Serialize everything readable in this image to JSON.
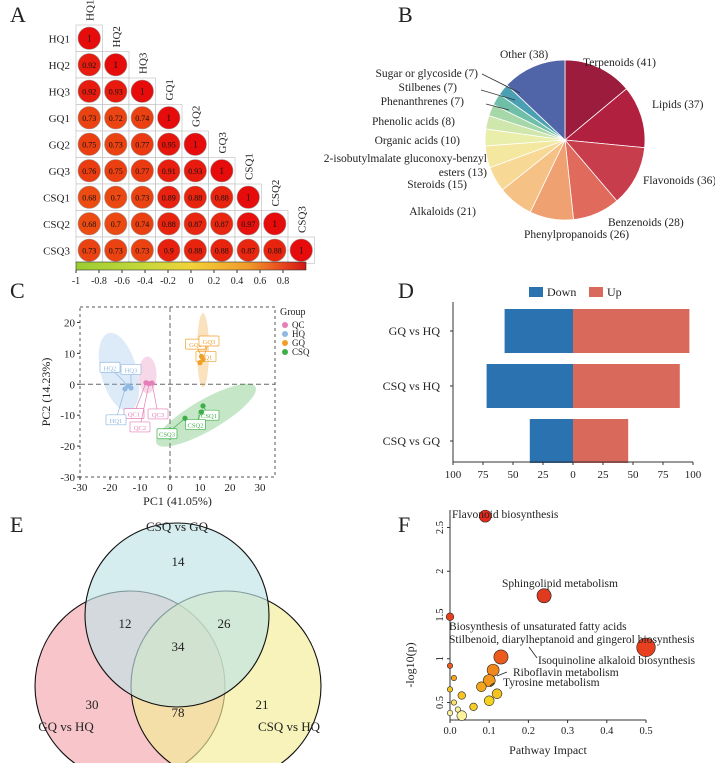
{
  "panel_labels": [
    "A",
    "B",
    "C",
    "D",
    "E",
    "F"
  ],
  "chart_data": [
    {
      "panel": "A",
      "type": "heatmap",
      "samples": [
        "HQ1",
        "HQ2",
        "HQ3",
        "GQ1",
        "GQ2",
        "GQ3",
        "CSQ1",
        "CSQ2",
        "CSQ3"
      ],
      "matrix": [
        [
          "1"
        ],
        [
          "0.92",
          "1"
        ],
        [
          "0.92",
          "0.93",
          "1"
        ],
        [
          "0.73",
          "0.72",
          "0.74",
          "1"
        ],
        [
          "0.75",
          "0.73",
          "0.77",
          "0.95",
          "1"
        ],
        [
          "0.76",
          "0.75",
          "0.77",
          "0.91",
          "0.93",
          "1"
        ],
        [
          "0.68",
          "0.7",
          "0.73",
          "0.89",
          "0.88",
          "0.88",
          "1"
        ],
        [
          "0.68",
          "0.7",
          "0.74",
          "0.88",
          "0.87",
          "0.87",
          "0.97",
          "1"
        ],
        [
          "0.73",
          "0.73",
          "0.73",
          "0.9",
          "0.88",
          "0.88",
          "0.87",
          "0.88",
          "1"
        ]
      ],
      "colorbar": {
        "ticks": [
          "-1",
          "-0.8",
          "-0.6",
          "-0.4",
          "-0.2",
          "0",
          "0.2",
          "0.4",
          "0.6",
          "0.8"
        ],
        "range": [
          -1,
          1
        ]
      }
    },
    {
      "panel": "B",
      "type": "pie",
      "slices": [
        {
          "label": "Terpenoids",
          "value": 41,
          "color": "#9b1c3c"
        },
        {
          "label": "Lipids",
          "value": 37,
          "color": "#b2203f"
        },
        {
          "label": "Flavonoids",
          "value": 36,
          "color": "#c83d4c"
        },
        {
          "label": "Benzenoids",
          "value": 28,
          "color": "#e06a5b"
        },
        {
          "label": "Phenylpropanoids",
          "value": 26,
          "color": "#f0a171"
        },
        {
          "label": "Alkaloids",
          "value": 21,
          "color": "#f5c184"
        },
        {
          "label": "Steroids",
          "value": 15,
          "color": "#f7d995"
        },
        {
          "label": "2-isobutylmalate gluconoxy-benzyl\nesters",
          "value": 13,
          "color": "#f4e8a1"
        },
        {
          "label": "Organic acids",
          "value": 10,
          "color": "#e9efaa"
        },
        {
          "label": "Phenolic acids",
          "value": 8,
          "color": "#cfe6ad"
        },
        {
          "label": "Phenanthrenes",
          "value": 7,
          "color": "#a6d7a8"
        },
        {
          "label": "Stilbenes",
          "value": 7,
          "color": "#6fbfa8"
        },
        {
          "label": "Sugar or glycoside",
          "value": 7,
          "color": "#4a9fb2"
        },
        {
          "label": "Other",
          "value": 38,
          "color": "#5064a8"
        }
      ]
    },
    {
      "panel": "C",
      "type": "scatter",
      "xlabel": "PC1  (41.05%)",
      "ylabel": "PC2  (14.23%)",
      "xlim": [
        -30,
        35
      ],
      "ylim": [
        -30,
        25
      ],
      "xticks": [
        -30,
        -20,
        -10,
        0,
        10,
        20,
        30
      ],
      "yticks": [
        -30,
        -20,
        -10,
        0,
        10,
        20
      ],
      "legend_title": "Group",
      "series": [
        {
          "name": "QC",
          "color": "#e57fb7",
          "points": [
            {
              "label": "QC1",
              "x": -8,
              "y": 0.5
            },
            {
              "label": "QC2",
              "x": -7,
              "y": 0.2
            },
            {
              "label": "QC3",
              "x": -6,
              "y": 0.4
            }
          ]
        },
        {
          "name": "HQ",
          "color": "#8fb8e3",
          "points": [
            {
              "label": "HQ1",
              "x": -15,
              "y": -1.5
            },
            {
              "label": "HQ2",
              "x": -14,
              "y": -0.5
            },
            {
              "label": "HQ3",
              "x": -13,
              "y": -1.2
            }
          ]
        },
        {
          "name": "GQ",
          "color": "#f0a029",
          "points": [
            {
              "label": "GQ1",
              "x": 10,
              "y": 7
            },
            {
              "label": "GQ2",
              "x": 10.5,
              "y": 9
            },
            {
              "label": "GQ3",
              "x": 11,
              "y": 8
            }
          ]
        },
        {
          "name": "CSQ",
          "color": "#3fae49",
          "points": [
            {
              "label": "CSQ1",
              "x": 11,
              "y": -7
            },
            {
              "label": "CSQ2",
              "x": 10.5,
              "y": -9
            },
            {
              "label": "CSQ3",
              "x": 5,
              "y": -11
            }
          ]
        }
      ]
    },
    {
      "panel": "D",
      "type": "bar",
      "categories": [
        "GQ vs HQ",
        "CSQ vs HQ",
        "CSQ vs GQ"
      ],
      "series": [
        {
          "name": "Down",
          "color": "#2b72b0",
          "values": [
            57,
            72,
            36
          ]
        },
        {
          "name": "Up",
          "color": "#d9695a",
          "values": [
            97,
            89,
            46
          ]
        }
      ],
      "xticks": [
        "100",
        "75",
        "50",
        "25",
        "0",
        "25",
        "50",
        "75",
        "100"
      ],
      "xlim": [
        -100,
        100
      ]
    },
    {
      "panel": "E",
      "type": "venn",
      "sets": [
        {
          "name": "CSQ vs GQ",
          "color": "#bfe4e6"
        },
        {
          "name": "GQ vs HQ",
          "color": "#f4a8ae"
        },
        {
          "name": "CSQ vs HQ",
          "color": "#f3ec95"
        }
      ],
      "regions": [
        "14",
        "12",
        "26",
        "34",
        "30",
        "78",
        "21"
      ]
    },
    {
      "panel": "F",
      "type": "scatter",
      "xlabel": "Pathway Impact",
      "ylabel": "-log10(p)",
      "xticks": [
        "0.0",
        "0.1",
        "0.2",
        "0.3",
        "0.4",
        "0.5"
      ],
      "yticks": [
        "0.5",
        "1",
        "1.5",
        "2",
        "2.5"
      ],
      "xlim": [
        0,
        0.5
      ],
      "ylim": [
        0.3,
        2.7
      ],
      "labels": [
        "Flavonoid biosynthesis",
        "Sphingolipid metabolism",
        "Biosynthesis of unsaturated fatty acids",
        "Stilbenoid, diarylheptanoid and gingerol biosynthesis",
        "Isoquinoline alkaloid biosynthesis",
        "Riboflavin metabolism",
        "Tyrosine metabolism"
      ],
      "points": [
        {
          "x": 0.09,
          "y": 2.63,
          "size": 4,
          "color": "#e8281c"
        },
        {
          "x": 0.24,
          "y": 1.72,
          "size": 5,
          "color": "#e03b1e"
        },
        {
          "x": 0.0,
          "y": 1.48,
          "size": 2,
          "color": "#e8401f"
        },
        {
          "x": 0.13,
          "y": 1.02,
          "size": 5,
          "color": "#ec5a1e"
        },
        {
          "x": 0.5,
          "y": 1.13,
          "size": 7,
          "color": "#e8401f"
        },
        {
          "x": 0.11,
          "y": 0.87,
          "size": 4,
          "color": "#f0871d"
        },
        {
          "x": 0.1,
          "y": 0.75,
          "size": 4,
          "color": "#f2981d"
        },
        {
          "x": 0.08,
          "y": 0.68,
          "size": 3,
          "color": "#f4a71e"
        },
        {
          "x": 0.12,
          "y": 0.6,
          "size": 3,
          "color": "#f5c21e"
        },
        {
          "x": 0.1,
          "y": 0.52,
          "size": 3,
          "color": "#f6d21f"
        },
        {
          "x": 0.03,
          "y": 0.58,
          "size": 2,
          "color": "#f7c222"
        },
        {
          "x": 0.06,
          "y": 0.45,
          "size": 2,
          "color": "#f6cb25"
        },
        {
          "x": 0.03,
          "y": 0.35,
          "size": 3,
          "color": "#fbf2a0"
        },
        {
          "x": 0.01,
          "y": 0.78,
          "size": 1,
          "color": "#f4a71e"
        },
        {
          "x": 0.0,
          "y": 0.92,
          "size": 1,
          "color": "#ec5a1e"
        },
        {
          "x": 0.0,
          "y": 0.65,
          "size": 1,
          "color": "#f5c21e"
        },
        {
          "x": 0.01,
          "y": 0.5,
          "size": 1,
          "color": "#f7e36a"
        },
        {
          "x": 0.0,
          "y": 0.38,
          "size": 1,
          "color": "#fbf2a0"
        },
        {
          "x": 0.02,
          "y": 0.42,
          "size": 1,
          "color": "#fbf2a0"
        }
      ]
    }
  ]
}
